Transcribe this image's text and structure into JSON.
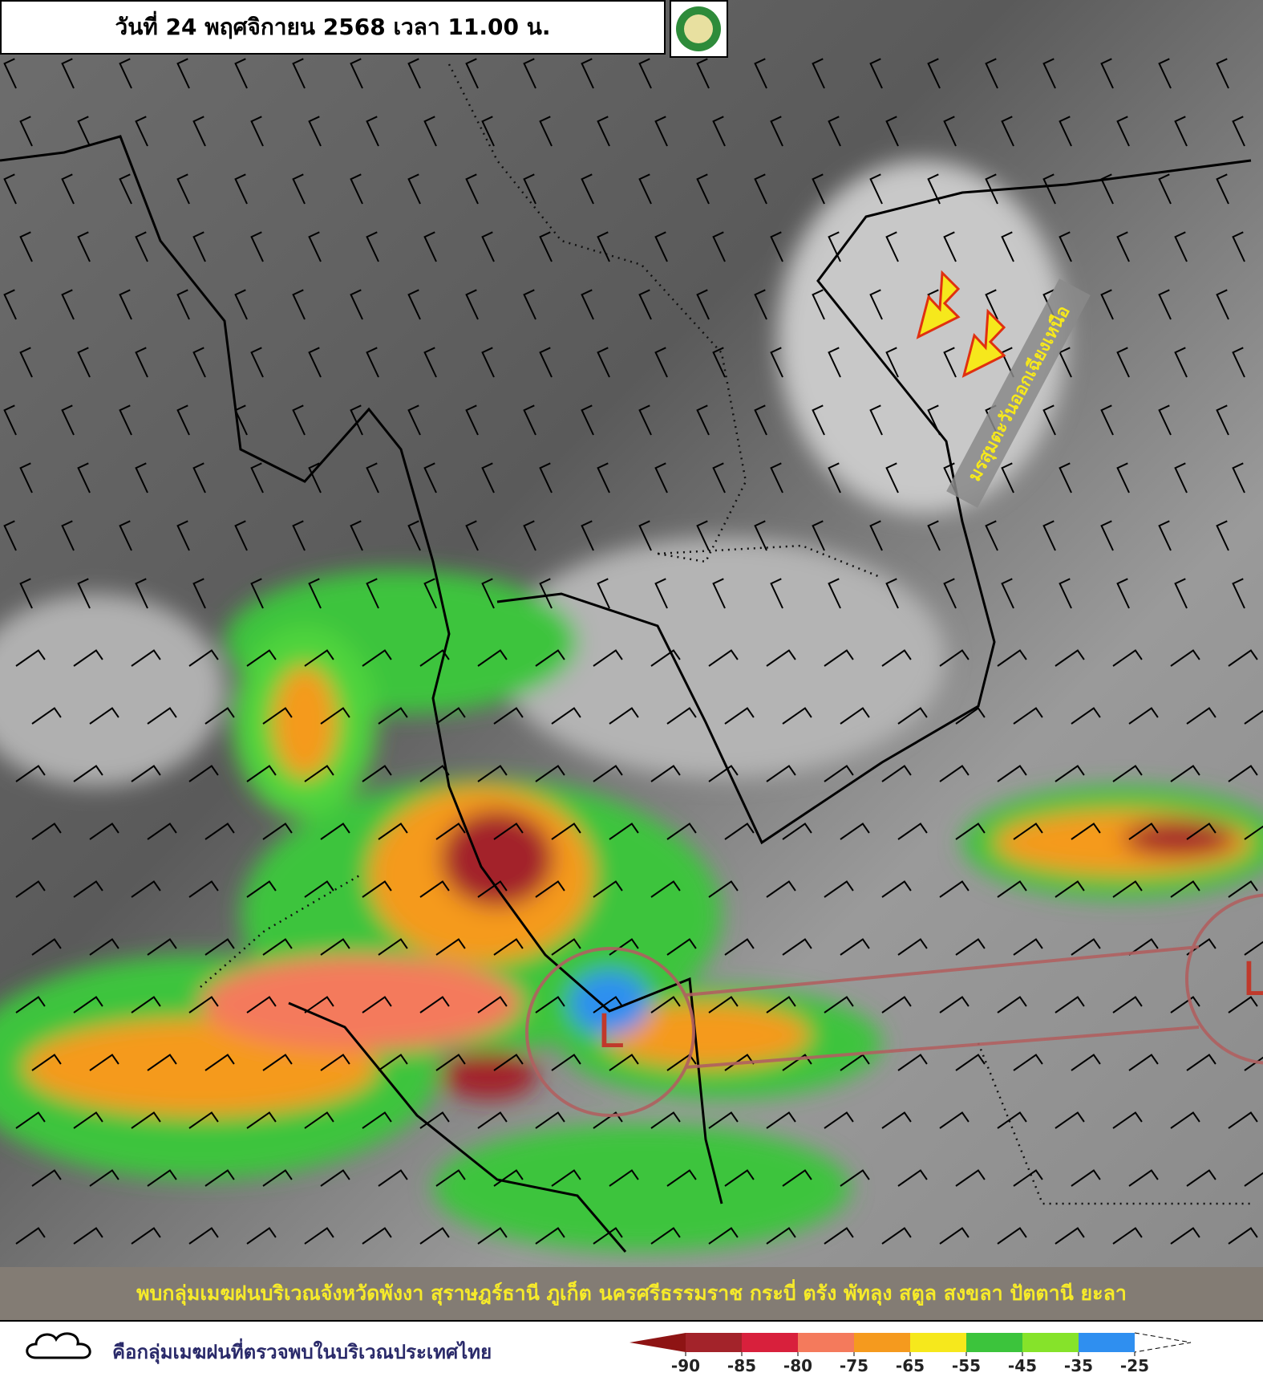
{
  "header": {
    "title": "วันที่ 24 พฤศจิกายน 2568 เวลา 11.00 น."
  },
  "map": {
    "lows": [
      "L",
      "L"
    ],
    "annotation": "มรสุมตะวันออกเฉียงเหนือ"
  },
  "caption": "พบกลุ่มเมฆฝนบริเวณจังหวัดพังงา สุราษฎร์ธานี ภูเก็ต นครศรีธรรมราช กระบี่ ตรัง พัทลุง สตูล สงขลา ปัตตานี ยะลา",
  "legend": {
    "cloud_text": "คือกลุ่มเมฆฝนที่ตรวจพบในบริเวณประเทศไทย",
    "scale": {
      "ticks": [
        -90,
        -85,
        -80,
        -75,
        -65,
        -55,
        -45,
        -35,
        -25
      ],
      "colors": [
        "#8e1414",
        "#a3232a",
        "#d8203c",
        "#f47a5c",
        "#f59a1e",
        "#f6e81c",
        "#3cc43c",
        "#86e32a",
        "#2f8ff0",
        "#ffffff"
      ]
    }
  }
}
